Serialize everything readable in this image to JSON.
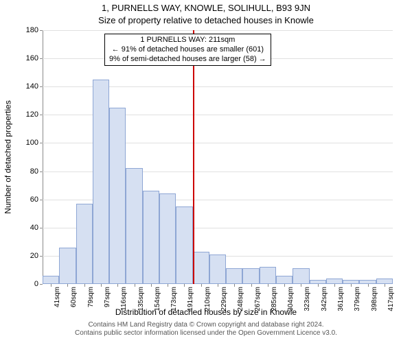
{
  "title": "1, PURNELLS WAY, KNOWLE, SOLIHULL, B93 9JN",
  "subtitle": "Size of property relative to detached houses in Knowle",
  "y_label": "Number of detached properties",
  "x_caption": "Distribution of detached houses by size in Knowle",
  "footer_line1": "Contains HM Land Registry data © Crown copyright and database right 2024.",
  "footer_line2": "Contains public sector information licensed under the Open Government Licence v3.0.",
  "chart": {
    "type": "histogram",
    "ylim": [
      0,
      180
    ],
    "ytick_step": 20,
    "x_categories": [
      "41sqm",
      "60sqm",
      "79sqm",
      "97sqm",
      "116sqm",
      "135sqm",
      "154sqm",
      "173sqm",
      "191sqm",
      "210sqm",
      "229sqm",
      "248sqm",
      "267sqm",
      "285sqm",
      "304sqm",
      "323sqm",
      "342sqm",
      "361sqm",
      "379sqm",
      "398sqm",
      "417sqm"
    ],
    "values": [
      6,
      26,
      57,
      145,
      125,
      82,
      66,
      64,
      55,
      23,
      21,
      11,
      11,
      12,
      6,
      11,
      3,
      4,
      3,
      3,
      4
    ],
    "bar_fill": "#d6e0f2",
    "bar_border": "#8ea6d4",
    "grid_color": "#e0e0e0",
    "axis_color": "#888888",
    "background": "#ffffff",
    "marker": {
      "category_index": 9,
      "color": "#cc0000"
    },
    "annotation": {
      "line1": "1 PURNELLS WAY: 211sqm",
      "line2": "← 91% of detached houses are smaller (601)",
      "line3": "9% of semi-detached houses are larger (58) →"
    }
  }
}
